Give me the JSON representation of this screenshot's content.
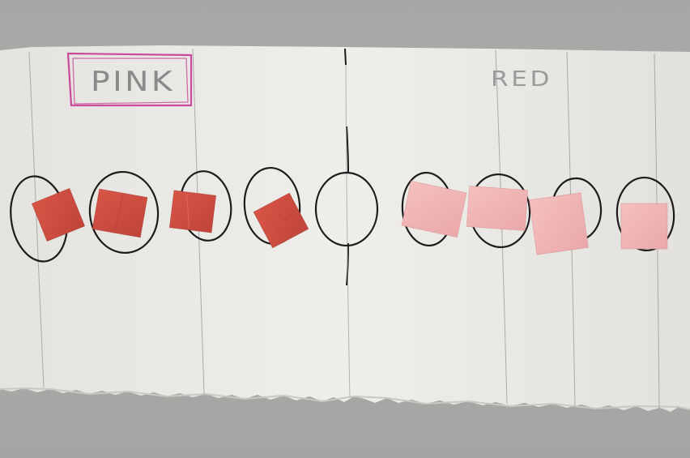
{
  "photo": {
    "labels": {
      "left": "PINK",
      "right": "RED"
    },
    "colors": {
      "background": "#a9aaa8",
      "paper": "#ecebe7",
      "ink": "#1e1b1d",
      "magenta_marker": "#c94a9a",
      "pencil": "#8d8d8d",
      "red_square": "#cf4a3f",
      "pink_square": "#f0b3b3"
    },
    "ovals": {
      "left_side": 4,
      "center": 1,
      "right_side": 4
    },
    "squares": {
      "red_count": 4,
      "pink_count": 4
    }
  }
}
